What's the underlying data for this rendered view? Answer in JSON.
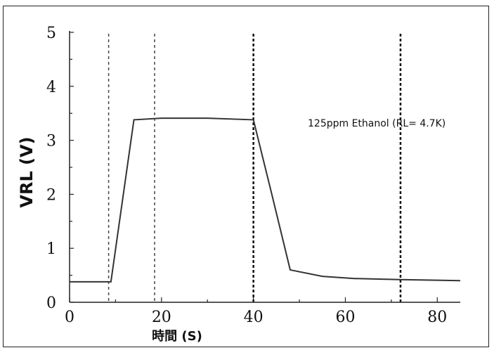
{
  "chart_data": {
    "type": "line",
    "title": "",
    "xlabel": "時間 (S)",
    "ylabel": "VRL (V)",
    "xlim": [
      0,
      85
    ],
    "ylim": [
      0,
      5
    ],
    "x_ticks": [
      0,
      20,
      40,
      60,
      80
    ],
    "y_ticks": [
      0,
      1,
      2,
      3,
      4,
      5
    ],
    "grid": false,
    "annotation": "125ppm Ethanol  (RL= 4.7K)",
    "vertical_markers": [
      8.5,
      18.5,
      40,
      72
    ],
    "series": [
      {
        "x": [
          0,
          9,
          14,
          20,
          30,
          40,
          44,
          48,
          55,
          62,
          72,
          85
        ],
        "y": [
          0.38,
          0.38,
          3.38,
          3.41,
          3.41,
          3.38,
          2.0,
          0.6,
          0.48,
          0.44,
          0.42,
          0.4
        ],
        "color": "#333333"
      }
    ]
  }
}
